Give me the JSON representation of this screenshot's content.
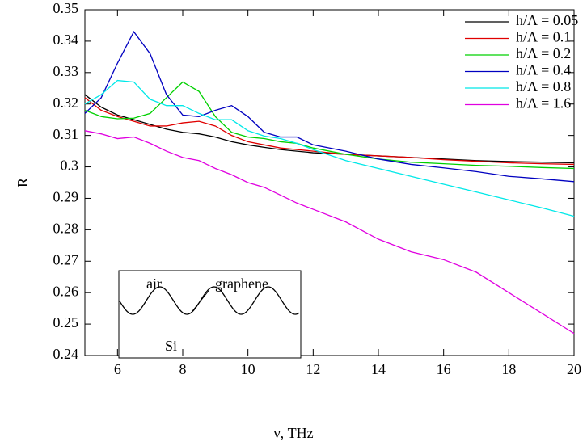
{
  "chart_data": {
    "type": "line",
    "xlabel": "ν, THz",
    "ylabel": "R",
    "xlim": [
      5,
      20
    ],
    "ylim": [
      0.24,
      0.35
    ],
    "xticks": [
      6,
      8,
      10,
      12,
      14,
      16,
      18,
      20
    ],
    "yticks": [
      0.24,
      0.25,
      0.26,
      0.27,
      0.28,
      0.29,
      0.3,
      0.31,
      0.32,
      0.33,
      0.34,
      0.35
    ],
    "legend": "upper right",
    "annotations": [
      "air",
      "graphene",
      "Si"
    ],
    "x": [
      5,
      5.5,
      6,
      6.5,
      7,
      7.5,
      8,
      8.5,
      9,
      9.5,
      10,
      10.5,
      11,
      11.5,
      12,
      13,
      14,
      15,
      16,
      17,
      18,
      19,
      20
    ],
    "series": [
      {
        "name": "h/Λ = 0.05",
        "color": "#000000",
        "values": [
          0.323,
          0.319,
          0.3165,
          0.315,
          0.3135,
          0.312,
          0.311,
          0.3105,
          0.3095,
          0.308,
          0.307,
          0.3062,
          0.3055,
          0.305,
          0.3045,
          0.304,
          0.3035,
          0.303,
          0.3025,
          0.302,
          0.3017,
          0.3015,
          0.3013
        ]
      },
      {
        "name": "h/Λ = 0.1",
        "color": "#e00000",
        "values": [
          0.322,
          0.318,
          0.316,
          0.3145,
          0.313,
          0.313,
          0.314,
          0.3145,
          0.313,
          0.31,
          0.308,
          0.307,
          0.306,
          0.3055,
          0.305,
          0.304,
          0.3035,
          0.303,
          0.3023,
          0.3018,
          0.3013,
          0.301,
          0.3008
        ]
      },
      {
        "name": "h/Λ = 0.2",
        "color": "#00d000",
        "values": [
          0.318,
          0.316,
          0.3153,
          0.3155,
          0.317,
          0.322,
          0.327,
          0.324,
          0.316,
          0.311,
          0.3095,
          0.309,
          0.308,
          0.3075,
          0.306,
          0.304,
          0.3025,
          0.3015,
          0.301,
          0.3005,
          0.3002,
          0.2998,
          0.2995
        ]
      },
      {
        "name": "h/Λ = 0.4",
        "color": "#0000c0",
        "values": [
          0.317,
          0.322,
          0.333,
          0.343,
          0.336,
          0.323,
          0.3165,
          0.316,
          0.318,
          0.3195,
          0.316,
          0.311,
          0.3095,
          0.3095,
          0.307,
          0.305,
          0.3025,
          0.3008,
          0.2997,
          0.2985,
          0.297,
          0.2962,
          0.2953
        ]
      },
      {
        "name": "h/Λ = 0.8",
        "color": "#00e8e8",
        "values": [
          0.32,
          0.323,
          0.3275,
          0.327,
          0.3215,
          0.3195,
          0.3195,
          0.317,
          0.315,
          0.315,
          0.3115,
          0.3098,
          0.309,
          0.3075,
          0.3055,
          0.302,
          0.2995,
          0.297,
          0.2945,
          0.292,
          0.2895,
          0.287,
          0.2843
        ]
      },
      {
        "name": "h/Λ = 1.6",
        "color": "#e000e0",
        "values": [
          0.3115,
          0.3105,
          0.309,
          0.3095,
          0.3075,
          0.305,
          0.303,
          0.302,
          0.2995,
          0.2975,
          0.295,
          0.2935,
          0.291,
          0.2885,
          0.2865,
          0.2825,
          0.277,
          0.273,
          0.2705,
          0.2665,
          0.26,
          0.2535,
          0.247
        ]
      }
    ]
  }
}
